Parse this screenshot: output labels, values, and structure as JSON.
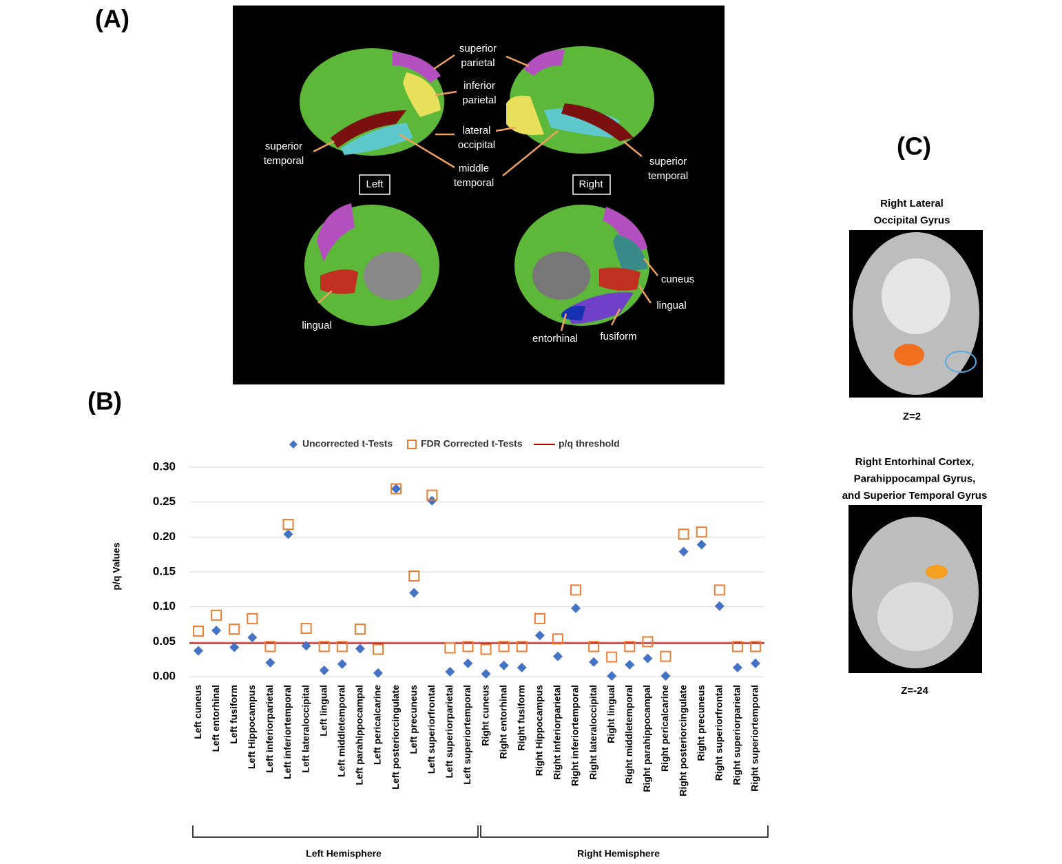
{
  "chart_data": {
    "type": "scatter",
    "ylabel": "p/q Values",
    "categories": [
      "Left cuneus",
      "Left entorhinal",
      "Left fusiform",
      "Left Hippocampus",
      "Left inferiorparietal",
      "Left inferiortemporal",
      "Left lateraloccipital",
      "Left lingual",
      "Left middletemporal",
      "Left parahippocampal",
      "Left pericalcarine",
      "Left posteriorcingulate",
      "Left precuneus",
      "Left superiorfrontal",
      "Left superiorparietal",
      "Left superiortemporal",
      "Right cuneus",
      "Right entorhinal",
      "Right fusiform",
      "Right Hippocampus",
      "Right inferiorparietal",
      "Right inferiortemporal",
      "Right lateraloccipital",
      "Right lingual",
      "Right middletemporal",
      "Right parahippocampal",
      "Right pericalcarine",
      "Right posteriorcingulate",
      "Right precuneus",
      "Right superiorfrontal",
      "Right superiorparietal",
      "Right superiortemporal"
    ],
    "series": [
      {
        "name": "Uncorrected t-Tests",
        "marker": "diamond",
        "color": "#4472c4",
        "values": [
          0.037,
          0.066,
          0.042,
          0.056,
          0.02,
          0.204,
          0.044,
          0.009,
          0.018,
          0.04,
          0.005,
          0.269,
          0.12,
          0.252,
          0.007,
          0.019,
          0.004,
          0.016,
          0.013,
          0.059,
          0.029,
          0.098,
          0.021,
          0.001,
          0.017,
          0.026,
          0.001,
          0.179,
          0.189,
          0.101,
          0.013,
          0.019
        ]
      },
      {
        "name": "FDR Corrected t-Tests",
        "marker": "square",
        "color": "#ed7d31",
        "values": [
          0.065,
          0.088,
          0.068,
          0.083,
          0.043,
          0.218,
          0.069,
          0.043,
          0.043,
          0.068,
          0.039,
          0.269,
          0.144,
          0.26,
          0.041,
          0.043,
          0.039,
          0.043,
          0.043,
          0.083,
          0.054,
          0.124,
          0.043,
          0.028,
          0.043,
          0.05,
          0.029,
          0.204,
          0.207,
          0.124,
          0.043,
          0.043
        ]
      }
    ],
    "threshold": {
      "name": "p/q threshold",
      "value": 0.048,
      "color": "#c00000"
    },
    "groups": [
      "Left Hemisphere",
      "Right Hemisphere"
    ],
    "ylim": [
      0,
      0.3
    ],
    "yticks": [
      {
        "value": 0,
        "label": "0.00"
      },
      {
        "value": 0.05,
        "label": "0.05"
      },
      {
        "value": 0.1,
        "label": "0.10"
      },
      {
        "value": 0.15,
        "label": "0.15"
      },
      {
        "value": 0.2,
        "label": "0.20"
      },
      {
        "value": 0.25,
        "label": "0.25"
      },
      {
        "value": 0.3,
        "label": "0.30"
      }
    ],
    "grid": true,
    "legend": "top"
  },
  "panel_a": {
    "label": "(A)",
    "annotations": [
      [
        "superior",
        "parietal"
      ],
      [
        "inferior",
        "parietal"
      ],
      [
        "lateral",
        "occipital"
      ],
      [
        "middle",
        "temporal"
      ],
      [
        "superior",
        "temporal"
      ],
      [
        "superior",
        "temporal"
      ],
      [
        "Left"
      ],
      [
        "Right"
      ],
      [
        "cuneus"
      ],
      [
        "lingual"
      ],
      [
        "lingual"
      ],
      [
        "entorhinal"
      ],
      [
        "fusiform"
      ]
    ]
  },
  "panel_b": {
    "label": "(B)"
  },
  "panel_c": {
    "label": "(C)",
    "views": [
      {
        "title": [
          "Right Lateral",
          "Occipital Gyrus"
        ],
        "slice": "Z=2"
      },
      {
        "title": [
          "Right Entorhinal Cortex,",
          "Parahippocampal Gyrus,",
          "and Superior Temporal Gyrus"
        ],
        "slice": "Z=-24"
      }
    ]
  }
}
